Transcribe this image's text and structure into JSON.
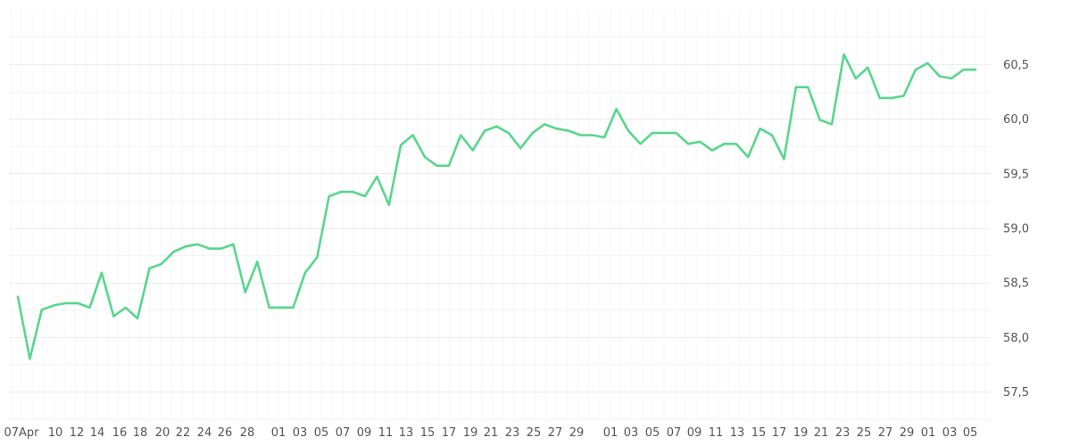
{
  "chart_data": {
    "type": "line",
    "title": "",
    "xlabel": "",
    "ylabel": "",
    "ylim": [
      57.25,
      60.8
    ],
    "grid": true,
    "y_ticks": [
      "57,5",
      "58,0",
      "58,5",
      "59,0",
      "59,5",
      "60,0",
      "60,5"
    ],
    "x_tick_labels": [
      "07Apr",
      "10",
      "12",
      "14",
      "16",
      "18",
      "20",
      "22",
      "24",
      "26",
      "28",
      "01",
      "03",
      "05",
      "07",
      "09",
      "11",
      "13",
      "15",
      "17",
      "19",
      "21",
      "23",
      "25",
      "27",
      "29",
      "01",
      "03",
      "05",
      "07",
      "09",
      "11",
      "13",
      "15",
      "17",
      "19",
      "21",
      "23",
      "25",
      "27",
      "29",
      "01",
      "03",
      "05"
    ],
    "series": [
      {
        "color": "#58d68d",
        "values": [
          58.37,
          57.8,
          58.25,
          58.29,
          58.31,
          58.31,
          58.27,
          58.59,
          58.19,
          58.27,
          58.17,
          58.63,
          58.67,
          58.78,
          58.83,
          58.85,
          58.81,
          58.81,
          58.85,
          58.41,
          58.69,
          58.27,
          58.27,
          58.27,
          58.59,
          58.73,
          59.29,
          59.33,
          59.33,
          59.29,
          59.47,
          59.21,
          59.76,
          59.85,
          59.65,
          59.57,
          59.57,
          59.85,
          59.71,
          59.89,
          59.93,
          59.87,
          59.73,
          59.87,
          59.95,
          59.91,
          59.89,
          59.85,
          59.85,
          59.83,
          60.09,
          59.89,
          59.77,
          59.87,
          59.87,
          59.87,
          59.77,
          59.79,
          59.71,
          59.77,
          59.77,
          59.65,
          59.91,
          59.85,
          59.63,
          60.29,
          60.29,
          59.99,
          59.95,
          60.59,
          60.37,
          60.47,
          60.19,
          60.19,
          60.21,
          60.45,
          60.51,
          60.39,
          60.37,
          60.45,
          60.45
        ]
      }
    ]
  }
}
